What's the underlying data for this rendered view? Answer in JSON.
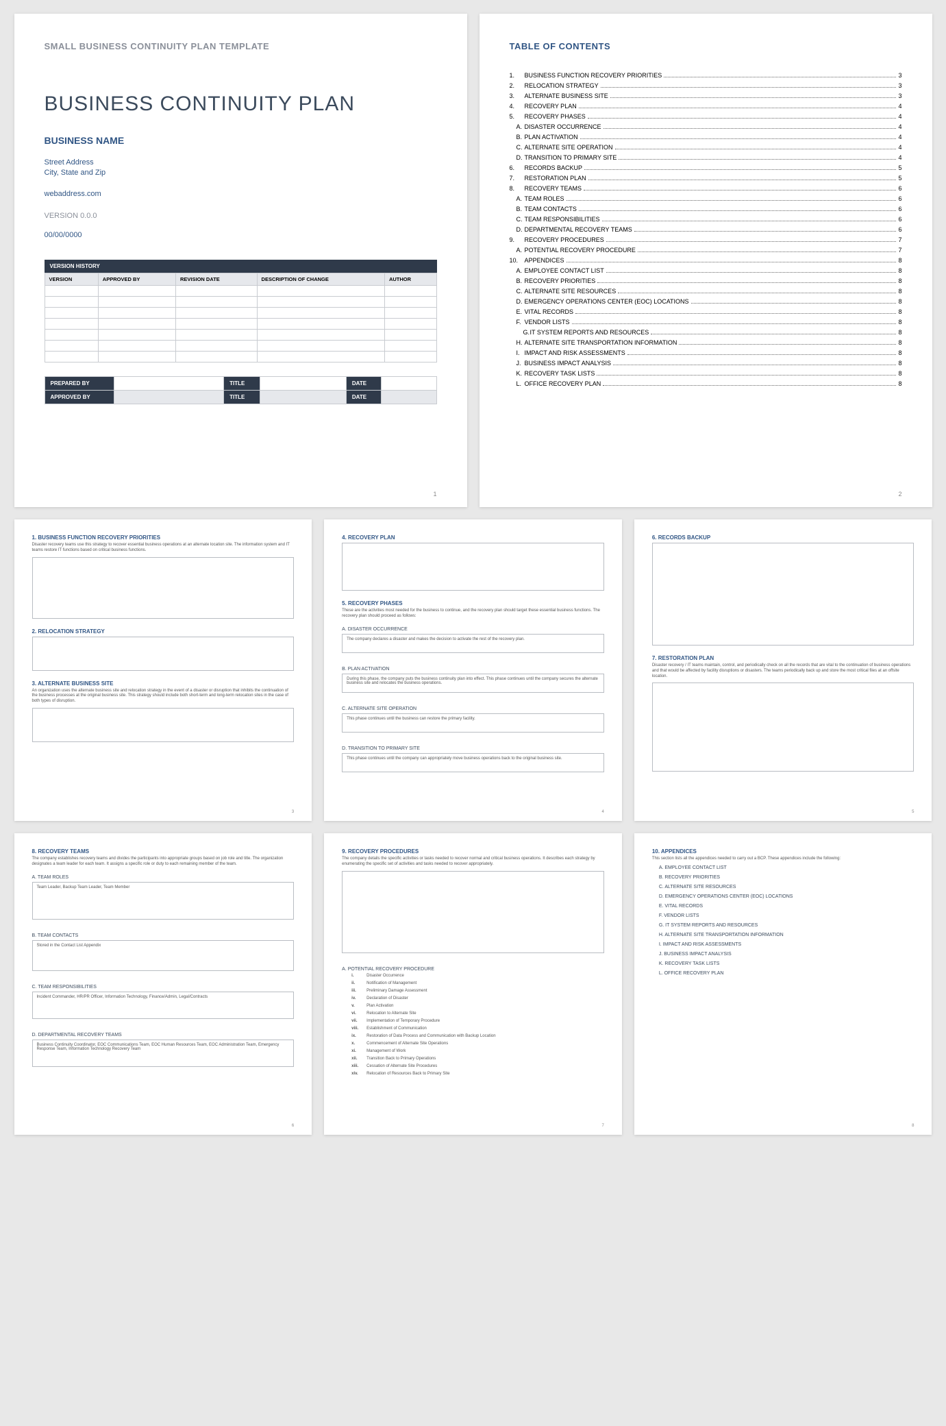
{
  "colors": {
    "page_bg": "#ffffff",
    "canvas_bg": "#e8e8e8",
    "heading_blue": "#305584",
    "title_gray": "#3b4a5c",
    "muted_gray": "#8a8f99",
    "dark_bar": "#2f3a4a",
    "cell_border": "#c8cbd0",
    "header_fill": "#e6e8ec"
  },
  "page1": {
    "template_label": "SMALL BUSINESS CONTINUITY PLAN TEMPLATE",
    "doc_title": "BUSINESS CONTINUITY PLAN",
    "business_name": "BUSINESS NAME",
    "street": "Street Address",
    "city": "City, State and Zip",
    "web": "webaddress.com",
    "version": "VERSION 0.0.0",
    "date": "00/00/0000",
    "vh_title": "VERSION HISTORY",
    "vh_cols": [
      "VERSION",
      "APPROVED BY",
      "REVISION DATE",
      "DESCRIPTION OF CHANGE",
      "AUTHOR"
    ],
    "vh_rows": 7,
    "sign": {
      "prepared": "PREPARED BY",
      "approved": "APPROVED BY",
      "title": "TITLE",
      "date": "DATE"
    },
    "page_num": "1"
  },
  "page2": {
    "title": "TABLE OF CONTENTS",
    "items": [
      {
        "n": "1.",
        "t": "BUSINESS FUNCTION RECOVERY PRIORITIES",
        "p": "3",
        "lvl": 0
      },
      {
        "n": "2.",
        "t": "RELOCATION STRATEGY",
        "p": "3",
        "lvl": 0
      },
      {
        "n": "3.",
        "t": "ALTERNATE BUSINESS SITE",
        "p": "3",
        "lvl": 0
      },
      {
        "n": "4.",
        "t": "RECOVERY PLAN",
        "p": "4",
        "lvl": 0
      },
      {
        "n": "5.",
        "t": "RECOVERY PHASES",
        "p": "4",
        "lvl": 0
      },
      {
        "n": "A.",
        "t": "DISASTER OCCURRENCE",
        "p": "4",
        "lvl": 1
      },
      {
        "n": "B.",
        "t": "PLAN ACTIVATION",
        "p": "4",
        "lvl": 1
      },
      {
        "n": "C.",
        "t": "ALTERNATE SITE OPERATION",
        "p": "4",
        "lvl": 1
      },
      {
        "n": "D.",
        "t": "TRANSITION TO PRIMARY SITE",
        "p": "4",
        "lvl": 1
      },
      {
        "n": "6.",
        "t": "RECORDS BACKUP",
        "p": "5",
        "lvl": 0
      },
      {
        "n": "7.",
        "t": "RESTORATION PLAN",
        "p": "5",
        "lvl": 0
      },
      {
        "n": "8.",
        "t": "RECOVERY TEAMS",
        "p": "6",
        "lvl": 0
      },
      {
        "n": "A.",
        "t": "TEAM ROLES",
        "p": "6",
        "lvl": 1
      },
      {
        "n": "B.",
        "t": "TEAM CONTACTS",
        "p": "6",
        "lvl": 1
      },
      {
        "n": "C.",
        "t": "TEAM RESPONSIBILITIES",
        "p": "6",
        "lvl": 1
      },
      {
        "n": "D.",
        "t": "DEPARTMENTAL RECOVERY TEAMS",
        "p": "6",
        "lvl": 1
      },
      {
        "n": "9.",
        "t": "RECOVERY PROCEDURES",
        "p": "7",
        "lvl": 0
      },
      {
        "n": "A.",
        "t": "POTENTIAL RECOVERY PROCEDURE",
        "p": "7",
        "lvl": 1
      },
      {
        "n": "10.",
        "t": "APPENDICES",
        "p": "8",
        "lvl": 0
      },
      {
        "n": "A.",
        "t": "EMPLOYEE CONTACT LIST",
        "p": "8",
        "lvl": 1
      },
      {
        "n": "B.",
        "t": "RECOVERY PRIORITIES",
        "p": "8",
        "lvl": 1
      },
      {
        "n": "C.",
        "t": "ALTERNATE SITE RESOURCES",
        "p": "8",
        "lvl": 1
      },
      {
        "n": "D.",
        "t": "EMERGENCY OPERATIONS CENTER (EOC) LOCATIONS",
        "p": "8",
        "lvl": 1
      },
      {
        "n": "E.",
        "t": "VITAL RECORDS",
        "p": "8",
        "lvl": 1
      },
      {
        "n": "F.",
        "t": "VENDOR LISTS",
        "p": "8",
        "lvl": 1
      },
      {
        "n": "G.",
        "t": "IT SYSTEM REPORTS AND RESOURCES",
        "p": "8",
        "lvl": 2
      },
      {
        "n": "H.",
        "t": "ALTERNATE SITE TRANSPORTATION INFORMATION",
        "p": "8",
        "lvl": 1
      },
      {
        "n": "I.",
        "t": "IMPACT AND RISK ASSESSMENTS",
        "p": "8",
        "lvl": 1
      },
      {
        "n": "J.",
        "t": "BUSINESS IMPACT ANALYSIS",
        "p": "8",
        "lvl": 1
      },
      {
        "n": "K.",
        "t": "RECOVERY TASK LISTS",
        "p": "8",
        "lvl": 1
      },
      {
        "n": "L.",
        "t": "OFFICE RECOVERY PLAN",
        "p": "8",
        "lvl": 1
      }
    ],
    "page_num": "2"
  },
  "p3": {
    "s1_h": "1. BUSINESS FUNCTION RECOVERY PRIORITIES",
    "s1_d": "Disaster recovery teams use this strategy to recover essential business operations at an alternate location site. The information system and IT teams restore IT functions based on critical business functions.",
    "s2_h": "2. RELOCATION STRATEGY",
    "s3_h": "3. ALTERNATE BUSINESS SITE",
    "s3_d": "An organization uses the alternate business site and relocation strategy in the event of a disaster or disruption that inhibits the continuation of the business processes at the original business site. This strategy should include both short-term and long-term relocation sites in the case of both types of disruption.",
    "page_num": "3"
  },
  "p4": {
    "s4_h": "4. RECOVERY PLAN",
    "s5_h": "5. RECOVERY PHASES",
    "s5_d": "These are the activities most needed for the business to continue, and the recovery plan should target these essential business functions. The recovery plan should proceed as follows:",
    "a_h": "A. DISASTER OCCURRENCE",
    "a_t": "The company declares a disaster and makes the decision to activate the rest of the recovery plan.",
    "b_h": "B. PLAN ACTIVATION",
    "b_t": "During this phase, the company puts the business continuity plan into effect. This phase continues until the company secures the alternate business site and relocates the business operations.",
    "c_h": "C. ALTERNATE SITE OPERATION",
    "c_t": "This phase continues until the business can restore the primary facility.",
    "d_h": "D. TRANSITION TO PRIMARY SITE",
    "d_t": "This phase continues until the company can appropriately move business operations back to the original business site.",
    "page_num": "4"
  },
  "p5": {
    "s6_h": "6. RECORDS BACKUP",
    "s7_h": "7. RESTORATION PLAN",
    "s7_d": "Disaster recovery / IT teams maintain, control, and periodically check on all the records that are vital to the continuation of business operations and that would be affected by facility disruptions or disasters. The teams periodically back up and store the most critical files at an offsite location.",
    "page_num": "5"
  },
  "p6": {
    "s8_h": "8. RECOVERY TEAMS",
    "s8_d": "The company establishes recovery teams and divides the participants into appropriate groups based on job role and title. The organization designates a team leader for each team. It assigns a specific role or duty to each remaining member of the team.",
    "a_h": "A. TEAM ROLES",
    "a_t": "Team Leader, Backup Team Leader, Team Member",
    "b_h": "B. TEAM CONTACTS",
    "b_t": "Stored in the Contact List Appendix",
    "c_h": "C. TEAM RESPONSIBILITIES",
    "c_t": "Incident Commander, HR/PR Officer, Information Technology, Finance/Admin, Legal/Contracts",
    "d_h": "D. DEPARTMENTAL RECOVERY TEAMS",
    "d_t": "Business Continuity Coordinator, EOC Communications Team, EOC Human Resources Team, EOC Administration Team, Emergency Response Team, Information Technology Recovery Team",
    "page_num": "6"
  },
  "p7": {
    "s9_h": "9. RECOVERY PROCEDURES",
    "s9_d": "The company details the specific activities or tasks needed to recover normal and critical business operations. It describes each strategy by enumerating the specific set of activities and tasks needed to recover appropriately.",
    "a_h": "A. POTENTIAL RECOVERY PROCEDURE",
    "steps": [
      {
        "n": "i.",
        "t": "Disaster Occurrence"
      },
      {
        "n": "ii.",
        "t": "Notification of Management"
      },
      {
        "n": "iii.",
        "t": "Preliminary Damage Assessment"
      },
      {
        "n": "iv.",
        "t": "Declaration of Disaster"
      },
      {
        "n": "v.",
        "t": "Plan Activation"
      },
      {
        "n": "vi.",
        "t": "Relocation to Alternate Site"
      },
      {
        "n": "vii.",
        "t": "Implementation of Temporary Procedure"
      },
      {
        "n": "viii.",
        "t": "Establishment of Communication"
      },
      {
        "n": "ix.",
        "t": "Restoration of Data Process and Communication with Backup Location"
      },
      {
        "n": "x.",
        "t": "Commencement of Alternate Site Operations"
      },
      {
        "n": "xi.",
        "t": "Management of Work"
      },
      {
        "n": "xii.",
        "t": "Transition Back to Primary Operations"
      },
      {
        "n": "xiii.",
        "t": "Cessation of Alternate Site Procedures"
      },
      {
        "n": "xiv.",
        "t": "Relocation of Resources Back to Primary Site"
      }
    ],
    "page_num": "7"
  },
  "p8": {
    "s10_h": "10.   APPENDICES",
    "s10_d": "This section lists all the appendices needed to carry out a BCP. These appendices include the following:",
    "items": [
      "A. EMPLOYEE CONTACT LIST",
      "B. RECOVERY PRIORITIES",
      "C. ALTERNATE SITE RESOURCES",
      "D. EMERGENCY OPERATIONS CENTER (EOC) LOCATIONS",
      "E. VITAL RECORDS",
      "F. VENDOR LISTS",
      "G. IT SYSTEM REPORTS AND RESOURCES",
      "H. ALTERNATE SITE TRANSPORTATION INFORMATION",
      "I. IMPACT AND RISK ASSESSMENTS",
      "J. BUSINESS IMPACT ANALYSIS",
      "K. RECOVERY TASK LISTS",
      "L. OFFICE RECOVERY PLAN"
    ],
    "page_num": "8"
  }
}
